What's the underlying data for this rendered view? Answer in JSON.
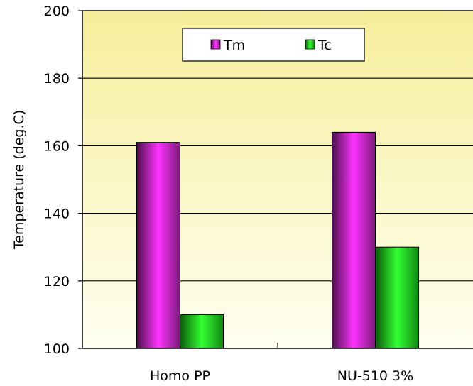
{
  "chart_data": {
    "type": "bar",
    "title": "",
    "xlabel": "",
    "ylabel": "Temperature (deg.C)",
    "ylim": [
      100,
      200
    ],
    "yticks": [
      100,
      120,
      140,
      160,
      180,
      200
    ],
    "grid": true,
    "legend_position": "top-center",
    "categories": [
      "Homo PP",
      "NU-510 3%"
    ],
    "series": [
      {
        "name": "Tm",
        "values": [
          161,
          164
        ],
        "color": "#cc33cc"
      },
      {
        "name": "Tc",
        "values": [
          110,
          130
        ],
        "color": "#22dd22"
      }
    ]
  },
  "colors": {
    "plot_background_top": "#f6ee9a",
    "plot_background_bottom": "#fffff2",
    "gridline": "#000000"
  }
}
